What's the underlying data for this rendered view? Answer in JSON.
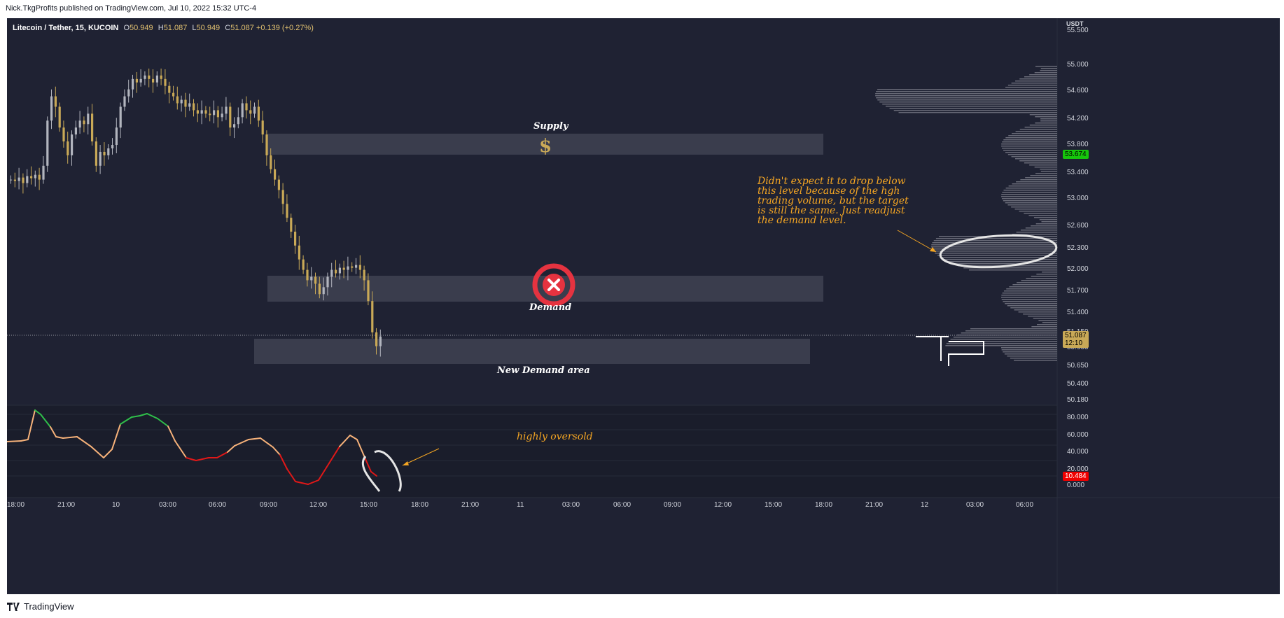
{
  "publish_line": "Nick.TkgProfits published on TradingView.com, Jul 10, 2022 15:32 UTC-4",
  "legend": {
    "symbol": "Litecoin / Tether, 15, KUCOIN",
    "open_key": "O",
    "open": "50.949",
    "high_key": "H",
    "high": "51.087",
    "low_key": "L",
    "low": "50.949",
    "close_key": "C",
    "close": "51.087",
    "change": "+0.139 (+0.27%)"
  },
  "price_axis": {
    "currency": "USDT",
    "labels": [
      "55.500",
      "55.000",
      "54.600",
      "54.200",
      "53.800",
      "53.400",
      "53.000",
      "52.600",
      "52.300",
      "52.000",
      "51.700",
      "51.400",
      "51.150",
      "50.900",
      "50.650",
      "50.400",
      "50.180"
    ],
    "current_price": "53.674",
    "last_price": "51.087",
    "countdown": "12:10"
  },
  "osc_axis": {
    "labels": [
      "80.000",
      "60.000",
      "40.000",
      "20.000",
      "0.000"
    ],
    "current": "10.484"
  },
  "time_axis": [
    "18:00",
    "21:00",
    "10",
    "03:00",
    "06:00",
    "09:00",
    "12:00",
    "15:00",
    "18:00",
    "21:00",
    "11",
    "03:00",
    "06:00",
    "09:00",
    "12:00",
    "15:00",
    "18:00",
    "21:00",
    "12",
    "03:00",
    "06:00"
  ],
  "annotations": {
    "supply": "Supply",
    "supply_symbol": "$",
    "demand": "Demand",
    "new_demand": "New Demand area",
    "note_lines": [
      "Didn't expect it to drop below",
      "this level because of the hgh",
      "trading volume, but the target",
      "is still the same. Just readjust",
      "the demand level."
    ],
    "oversold": "highly oversold"
  },
  "colors": {
    "background": "#1f2233",
    "candle_up": "#b2b5be",
    "candle_down": "#c9a957",
    "zone": "#3a3d4d",
    "annotation": "#f5a623",
    "rsi_neutral": "#f7b27a",
    "rsi_overbought": "#2fbf4a",
    "rsi_oversold": "#e01818",
    "current_tag": "#16c60c",
    "osc_tag": "#f00000"
  },
  "footer": {
    "brand": "TradingView"
  }
}
